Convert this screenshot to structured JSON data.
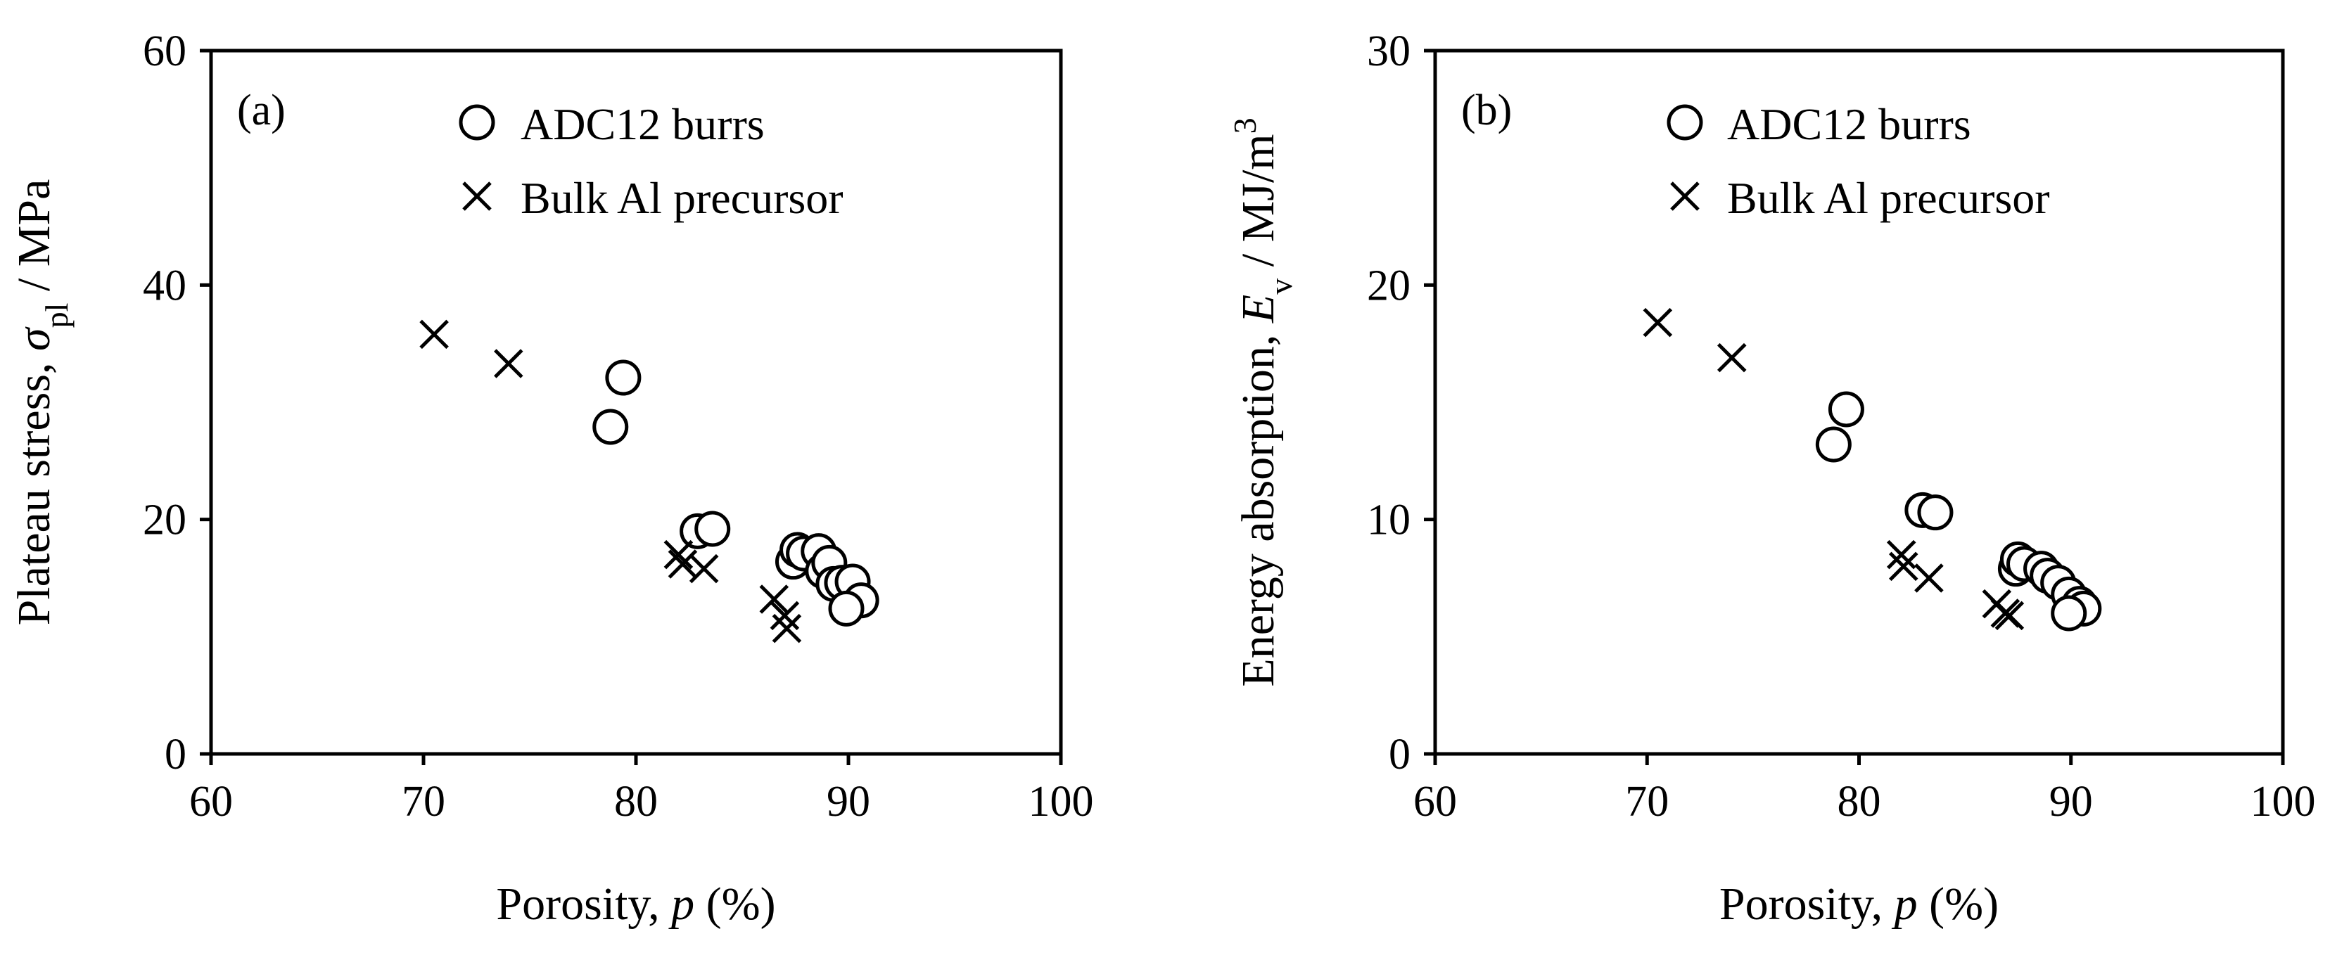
{
  "chart_data": [
    {
      "type": "scatter",
      "panel_label": "(a)",
      "xlabel": {
        "prefix": "Porosity, ",
        "symbol": "p",
        "suffix": " (%)"
      },
      "ylabel": {
        "prefix": "Plateau stress, ",
        "symbol": "σ",
        "subscript": "pl",
        "suffix": " / MPa"
      },
      "xlim": [
        60,
        100
      ],
      "ylim": [
        0,
        60
      ],
      "xticks": [
        60,
        70,
        80,
        90,
        100
      ],
      "yticks": [
        0,
        20,
        40,
        60
      ],
      "grid": false,
      "legend_position": "top",
      "series": [
        {
          "name": "ADC12 burrs",
          "marker": "circle",
          "points": [
            [
              78.8,
              27.9
            ],
            [
              79.4,
              32.1
            ],
            [
              82.9,
              19.0
            ],
            [
              83.6,
              19.2
            ],
            [
              87.4,
              16.4
            ],
            [
              87.6,
              17.4
            ],
            [
              87.9,
              17.1
            ],
            [
              88.6,
              17.3
            ],
            [
              88.8,
              15.6
            ],
            [
              89.1,
              16.3
            ],
            [
              89.3,
              14.5
            ],
            [
              89.7,
              14.6
            ],
            [
              90.2,
              14.7
            ],
            [
              90.6,
              13.1
            ],
            [
              89.9,
              12.4
            ]
          ]
        },
        {
          "name": "Bulk Al precursor",
          "marker": "cross",
          "points": [
            [
              70.5,
              35.8
            ],
            [
              74.0,
              33.3
            ],
            [
              82.0,
              17.0
            ],
            [
              82.2,
              16.2
            ],
            [
              83.2,
              15.8
            ],
            [
              86.5,
              13.2
            ],
            [
              87.0,
              11.8
            ],
            [
              87.1,
              10.7
            ]
          ]
        }
      ]
    },
    {
      "type": "scatter",
      "panel_label": "(b)",
      "xlabel": {
        "prefix": "Porosity, ",
        "symbol": "p",
        "suffix": " (%)"
      },
      "ylabel": {
        "prefix": "Energy absorption, ",
        "symbol": "E",
        "subscript": "v",
        "suffix": " / MJ/m",
        "superscript": "3"
      },
      "xlim": [
        60,
        100
      ],
      "ylim": [
        0,
        30
      ],
      "xticks": [
        60,
        70,
        80,
        90,
        100
      ],
      "yticks": [
        0,
        10,
        20,
        30
      ],
      "grid": false,
      "legend_position": "top",
      "series": [
        {
          "name": "ADC12 burrs",
          "marker": "circle",
          "points": [
            [
              78.8,
              13.2
            ],
            [
              79.4,
              14.7
            ],
            [
              83.0,
              10.4
            ],
            [
              83.6,
              10.3
            ],
            [
              87.4,
              7.9
            ],
            [
              87.5,
              8.3
            ],
            [
              87.8,
              8.1
            ],
            [
              88.6,
              7.9
            ],
            [
              88.9,
              7.6
            ],
            [
              89.4,
              7.3
            ],
            [
              89.9,
              6.8
            ],
            [
              90.4,
              6.4
            ],
            [
              90.6,
              6.2
            ],
            [
              89.9,
              6.0
            ]
          ]
        },
        {
          "name": "Bulk Al precursor",
          "marker": "cross",
          "points": [
            [
              70.5,
              18.4
            ],
            [
              74.0,
              16.9
            ],
            [
              82.0,
              8.5
            ],
            [
              82.1,
              8.0
            ],
            [
              83.3,
              7.5
            ],
            [
              86.5,
              6.4
            ],
            [
              86.9,
              6.0
            ],
            [
              87.1,
              5.9
            ]
          ]
        }
      ]
    }
  ]
}
